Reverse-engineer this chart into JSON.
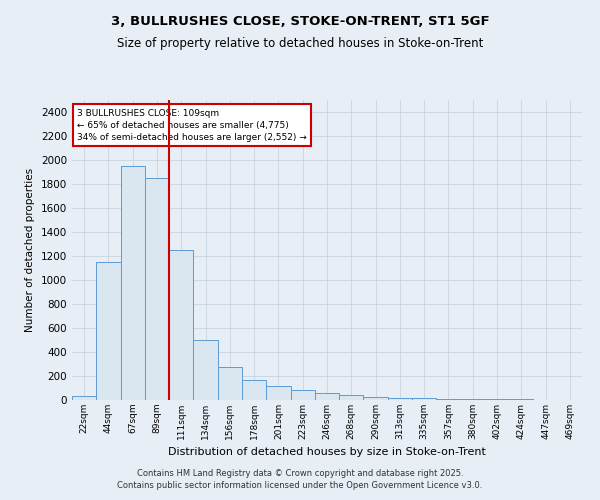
{
  "title1": "3, BULLRUSHES CLOSE, STOKE-ON-TRENT, ST1 5GF",
  "title2": "Size of property relative to detached houses in Stoke-on-Trent",
  "xlabel": "Distribution of detached houses by size in Stoke-on-Trent",
  "ylabel": "Number of detached properties",
  "categories": [
    "22sqm",
    "44sqm",
    "67sqm",
    "89sqm",
    "111sqm",
    "134sqm",
    "156sqm",
    "178sqm",
    "201sqm",
    "223sqm",
    "246sqm",
    "268sqm",
    "290sqm",
    "313sqm",
    "335sqm",
    "357sqm",
    "380sqm",
    "402sqm",
    "424sqm",
    "447sqm",
    "469sqm"
  ],
  "values": [
    30,
    1150,
    1950,
    1850,
    1250,
    500,
    275,
    165,
    115,
    80,
    55,
    40,
    25,
    20,
    20,
    10,
    8,
    5,
    5,
    3,
    3
  ],
  "bar_color": "#dae6f0",
  "bar_edge_color": "#5b9bd5",
  "vline_color": "#cc0000",
  "annotation_text": "3 BULLRUSHES CLOSE: 109sqm\n← 65% of detached houses are smaller (4,775)\n34% of semi-detached houses are larger (2,552) →",
  "annotation_box_color": "#ffffff",
  "annotation_box_edge": "#cc0000",
  "ylim": [
    0,
    2500
  ],
  "yticks": [
    0,
    200,
    400,
    600,
    800,
    1000,
    1200,
    1400,
    1600,
    1800,
    2000,
    2200,
    2400
  ],
  "footer1": "Contains HM Land Registry data © Crown copyright and database right 2025.",
  "footer2": "Contains public sector information licensed under the Open Government Licence v3.0.",
  "bg_color": "#e8eef5",
  "grid_color": "#c8d4e0"
}
